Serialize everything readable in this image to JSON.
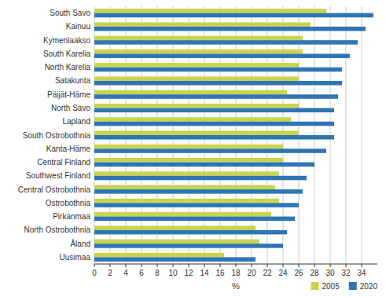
{
  "chart_data": {
    "type": "bar",
    "orientation": "horizontal",
    "categories": [
      "South Savo",
      "Kainuu",
      "Kymenlaakso",
      "South Karelia",
      "North Karelia",
      "Satakunta",
      "Päijät-Häme",
      "North Savo",
      "Lapland",
      "South Ostrobothnia",
      "Kanta-Häme",
      "Central Finland",
      "Southwest Finland",
      "Central Ostrobothnia",
      "Ostrobothnia",
      "Pirkanmaa",
      "North Ostrobothnia",
      "Åland",
      "Uusimaa"
    ],
    "series": [
      {
        "name": "2005",
        "color": "#c8d44e",
        "values": [
          29.5,
          27.5,
          26.5,
          26.5,
          26.0,
          26.0,
          24.5,
          26.0,
          25.0,
          26.0,
          24.0,
          24.0,
          23.5,
          23.0,
          23.5,
          22.5,
          20.5,
          21.0,
          16.5
        ]
      },
      {
        "name": "2020",
        "color": "#2e75b6",
        "values": [
          35.5,
          34.5,
          33.5,
          32.5,
          31.5,
          31.5,
          31.0,
          30.5,
          30.5,
          30.5,
          29.5,
          28.0,
          27.0,
          26.5,
          26.0,
          25.5,
          24.5,
          24.0,
          20.5
        ]
      }
    ],
    "xlabel": "%",
    "xlim": [
      0,
      36
    ],
    "xticks": [
      0,
      2,
      4,
      6,
      8,
      10,
      12,
      14,
      16,
      18,
      20,
      22,
      24,
      26,
      28,
      30,
      32,
      34
    ],
    "grid": true,
    "legend": "lower right"
  }
}
